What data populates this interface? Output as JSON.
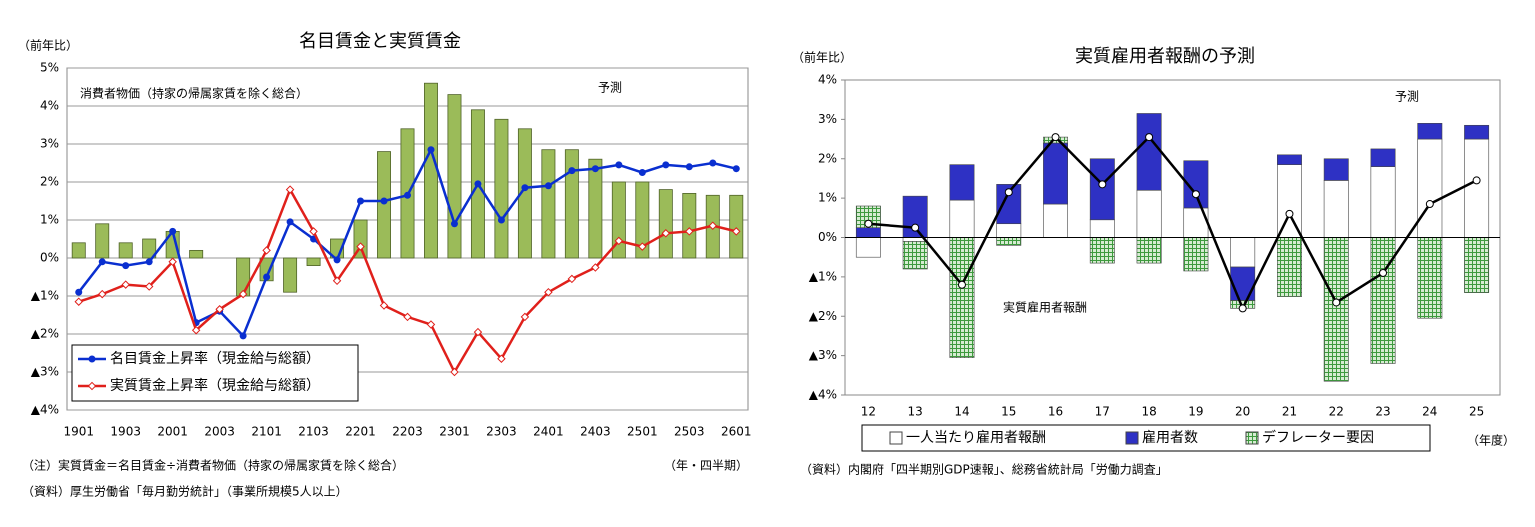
{
  "chart_data": [
    {
      "type": "combo",
      "title": "名目賃金と実質賃金",
      "ylabel": "（前年比）",
      "xlabel": "（年・四半期）",
      "notes": [
        "（注）実質賃金＝名目賃金÷消費者物価（持家の帰属家賃を除く総合）",
        "（資料）厚生労働省「毎月勤労統計」（事業所規模5人以上）"
      ],
      "annotations": [
        "予測"
      ],
      "categories": [
        "1901",
        null,
        "1903",
        null,
        "2001",
        null,
        "2003",
        null,
        "2101",
        null,
        "2103",
        null,
        "2201",
        null,
        "2203",
        null,
        "2301",
        null,
        "2303",
        null,
        "2401",
        null,
        "2403",
        null,
        "2501",
        null,
        "2503",
        null,
        "2601"
      ],
      "series": [
        {
          "name": "消費者物価（持家の帰属家賃を除く総合）",
          "kind": "bar",
          "color": "#9bbb59",
          "values": [
            0.4,
            0.9,
            0.4,
            0.5,
            0.7,
            0.2,
            0,
            -1.0,
            -0.6,
            -0.9,
            -0.2,
            0.5,
            1.0,
            2.8,
            3.4,
            4.6,
            4.3,
            3.9,
            3.65,
            3.4,
            2.85,
            2.85,
            2.6,
            2.0,
            2.0,
            1.8,
            1.7,
            1.65,
            1.65
          ]
        },
        {
          "name": "名目賃金上昇率（現金給与総額）",
          "kind": "line",
          "color": "#0a2fd0",
          "values": [
            -0.9,
            -0.1,
            -0.2,
            -0.1,
            0.7,
            -1.7,
            -1.4,
            -2.05,
            -0.5,
            0.95,
            0.5,
            -0.05,
            1.5,
            1.5,
            1.65,
            2.85,
            0.9,
            1.95,
            1.0,
            1.85,
            1.9,
            2.3,
            2.35,
            2.45,
            2.25,
            2.45,
            2.4,
            2.5,
            2.35
          ]
        },
        {
          "name": "実質賃金上昇率（現金給与総額）",
          "kind": "line",
          "color": "#e0201b",
          "values": [
            -1.15,
            -0.95,
            -0.7,
            -0.75,
            -0.1,
            -1.9,
            -1.35,
            -0.95,
            0.2,
            1.8,
            0.7,
            -0.6,
            0.3,
            -1.25,
            -1.55,
            -1.75,
            -3.0,
            -1.95,
            -2.65,
            -1.55,
            -0.9,
            -0.55,
            -0.25,
            0.45,
            0.3,
            0.65,
            0.7,
            0.85,
            0.7
          ]
        }
      ],
      "ylim": [
        -4,
        5
      ],
      "yticks": [
        {
          "value": -4,
          "label": "▲4%"
        },
        {
          "value": -3,
          "label": "▲3%"
        },
        {
          "value": -2,
          "label": "▲2%"
        },
        {
          "value": -1,
          "label": "▲1%"
        },
        {
          "value": 0,
          "label": "0%"
        },
        {
          "value": 1,
          "label": "1%"
        },
        {
          "value": 2,
          "label": "2%"
        },
        {
          "value": 3,
          "label": "3%"
        },
        {
          "value": 4,
          "label": "4%"
        },
        {
          "value": 5,
          "label": "5%"
        }
      ],
      "grid": true,
      "legend": "lower left"
    },
    {
      "type": "stacked",
      "title": "実質雇用者報酬の予測",
      "ylabel": "（前年比）",
      "xlabel": "（年度）",
      "notes": [
        "（資料）内閣府「四半期別GDP速報」、総務省統計局「労働力調査」"
      ],
      "annotations": [
        "予測"
      ],
      "categories": [
        "12",
        "13",
        "14",
        "15",
        "16",
        "17",
        "18",
        "19",
        "20",
        "21",
        "22",
        "23",
        "24",
        "25"
      ],
      "series": [
        {
          "name": "一人当たり雇用者報酬",
          "kind": "bar",
          "color": "#ffffff",
          "values": [
            -0.5,
            -0.1,
            0.95,
            0.35,
            0.85,
            0.45,
            1.2,
            0.75,
            -0.75,
            1.85,
            1.45,
            1.8,
            2.5,
            2.5
          ]
        },
        {
          "name": "雇用者数",
          "kind": "bar",
          "color": "#2e31c4",
          "values": [
            0.25,
            1.05,
            0.9,
            1.0,
            1.55,
            1.55,
            1.95,
            1.2,
            -0.85,
            0.25,
            0.55,
            0.45,
            0.4,
            0.35
          ]
        },
        {
          "name": "デフレーター要因",
          "kind": "bar",
          "color": "#3e9a3e",
          "values": [
            0.55,
            -0.7,
            -3.05,
            -0.2,
            0.15,
            -0.65,
            -0.65,
            -0.85,
            -0.2,
            -1.5,
            -3.65,
            -3.2,
            -2.05,
            -1.4
          ]
        },
        {
          "name": "実質雇用者報酬",
          "kind": "line",
          "color": "#000000",
          "values": [
            0.35,
            0.25,
            -1.2,
            1.15,
            2.55,
            1.35,
            2.55,
            1.1,
            -1.8,
            0.6,
            -1.65,
            -0.9,
            0.85,
            1.45
          ]
        }
      ],
      "ylim": [
        -4,
        4
      ],
      "yticks": [
        {
          "value": -4,
          "label": "▲4%"
        },
        {
          "value": -3,
          "label": "▲3%"
        },
        {
          "value": -2,
          "label": "▲2%"
        },
        {
          "value": -1,
          "label": "▲1%"
        },
        {
          "value": 0,
          "label": "0%"
        },
        {
          "value": 1,
          "label": "1%"
        },
        {
          "value": 2,
          "label": "2%"
        },
        {
          "value": 3,
          "label": "3%"
        },
        {
          "value": 4,
          "label": "4%"
        }
      ],
      "grid": false,
      "legend": "bottom"
    }
  ]
}
